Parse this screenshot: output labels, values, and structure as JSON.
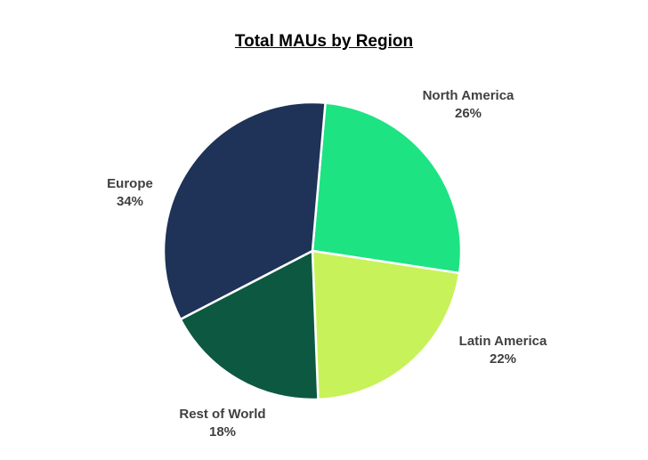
{
  "chart_data": {
    "type": "pie",
    "title": "Total MAUs by Region",
    "slices": [
      {
        "label": "North America",
        "value": 26,
        "value_label": "26%",
        "color": "#1de383"
      },
      {
        "label": "Latin America",
        "value": 22,
        "value_label": "22%",
        "color": "#c8f25a"
      },
      {
        "label": "Rest of World",
        "value": 18,
        "value_label": "18%",
        "color": "#0d5841"
      },
      {
        "label": "Europe",
        "value": 34,
        "value_label": "34%",
        "color": "#1f3257"
      }
    ],
    "start_angle_deg": 5,
    "direction": "clockwise",
    "slice_border_color": "#ffffff"
  }
}
